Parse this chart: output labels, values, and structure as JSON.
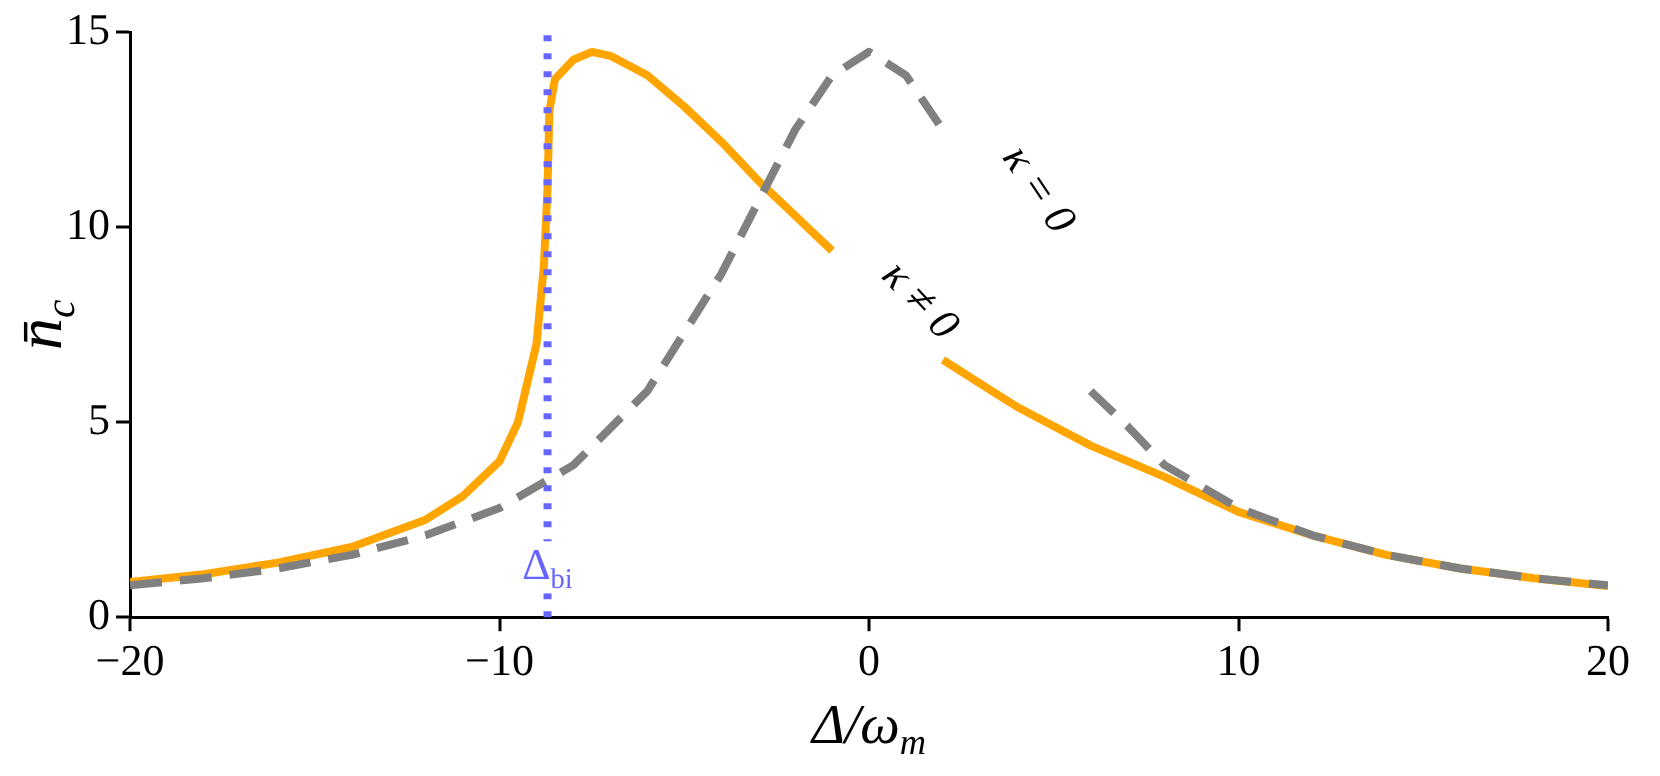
{
  "chart_data": {
    "type": "line",
    "xlabel": "Δ/ω$_{m}$",
    "ylabel": "n̄$_{c}$",
    "xlim": [
      -20,
      20
    ],
    "ylim": [
      0,
      15
    ],
    "xticks": [
      -20,
      -10,
      0,
      10,
      20
    ],
    "yticks": [
      0,
      5,
      10,
      15
    ],
    "grid": false,
    "legend": false,
    "series": [
      {
        "color": "#808080",
        "line_style": "dashed",
        "x": [
          -20,
          -18,
          -16,
          -14,
          -12,
          -10,
          -8,
          -6,
          -4,
          -2,
          -1,
          0,
          1,
          2,
          2.5,
          6,
          7,
          8,
          10,
          12,
          14,
          16,
          18,
          20
        ],
        "values": [
          0.82,
          1.0,
          1.25,
          1.6,
          2.1,
          2.8,
          3.9,
          5.8,
          8.8,
          12.5,
          13.9,
          14.5,
          13.9,
          12.5,
          null,
          5.8,
          4.9,
          3.9,
          2.8,
          2.1,
          1.6,
          1.25,
          1.0,
          0.82
        ]
      },
      {
        "color": "#ffa500",
        "line_style": "solid",
        "x": [
          -20,
          -18,
          -16,
          -14,
          -12,
          -11,
          -10,
          -9.5,
          -9.0,
          -8.8,
          -8.7,
          -8.65,
          -8.5,
          -8,
          -7.5,
          -7,
          -6,
          -5,
          -4,
          -3,
          -2,
          -1,
          0.5,
          2,
          3,
          4,
          6,
          8,
          10,
          12,
          14,
          16,
          18,
          20
        ],
        "values": [
          0.9,
          1.1,
          1.4,
          1.8,
          2.5,
          3.1,
          4.0,
          5.0,
          7.0,
          9.0,
          11.0,
          13.0,
          13.8,
          14.3,
          14.5,
          14.4,
          13.9,
          13.1,
          12.2,
          11.2,
          10.3,
          9.4,
          null,
          6.6,
          6.0,
          5.4,
          4.4,
          3.6,
          2.7,
          2.1,
          1.6,
          1.25,
          1.0,
          0.8
        ]
      }
    ],
    "ref_lines": [
      {
        "axis": "x",
        "value": -8.7,
        "label": "Δ$_{bi}$",
        "color": "#6666ff",
        "line_style": "dotted"
      }
    ],
    "annotations": [
      "κ ≠ 0",
      "κ = 0"
    ]
  }
}
